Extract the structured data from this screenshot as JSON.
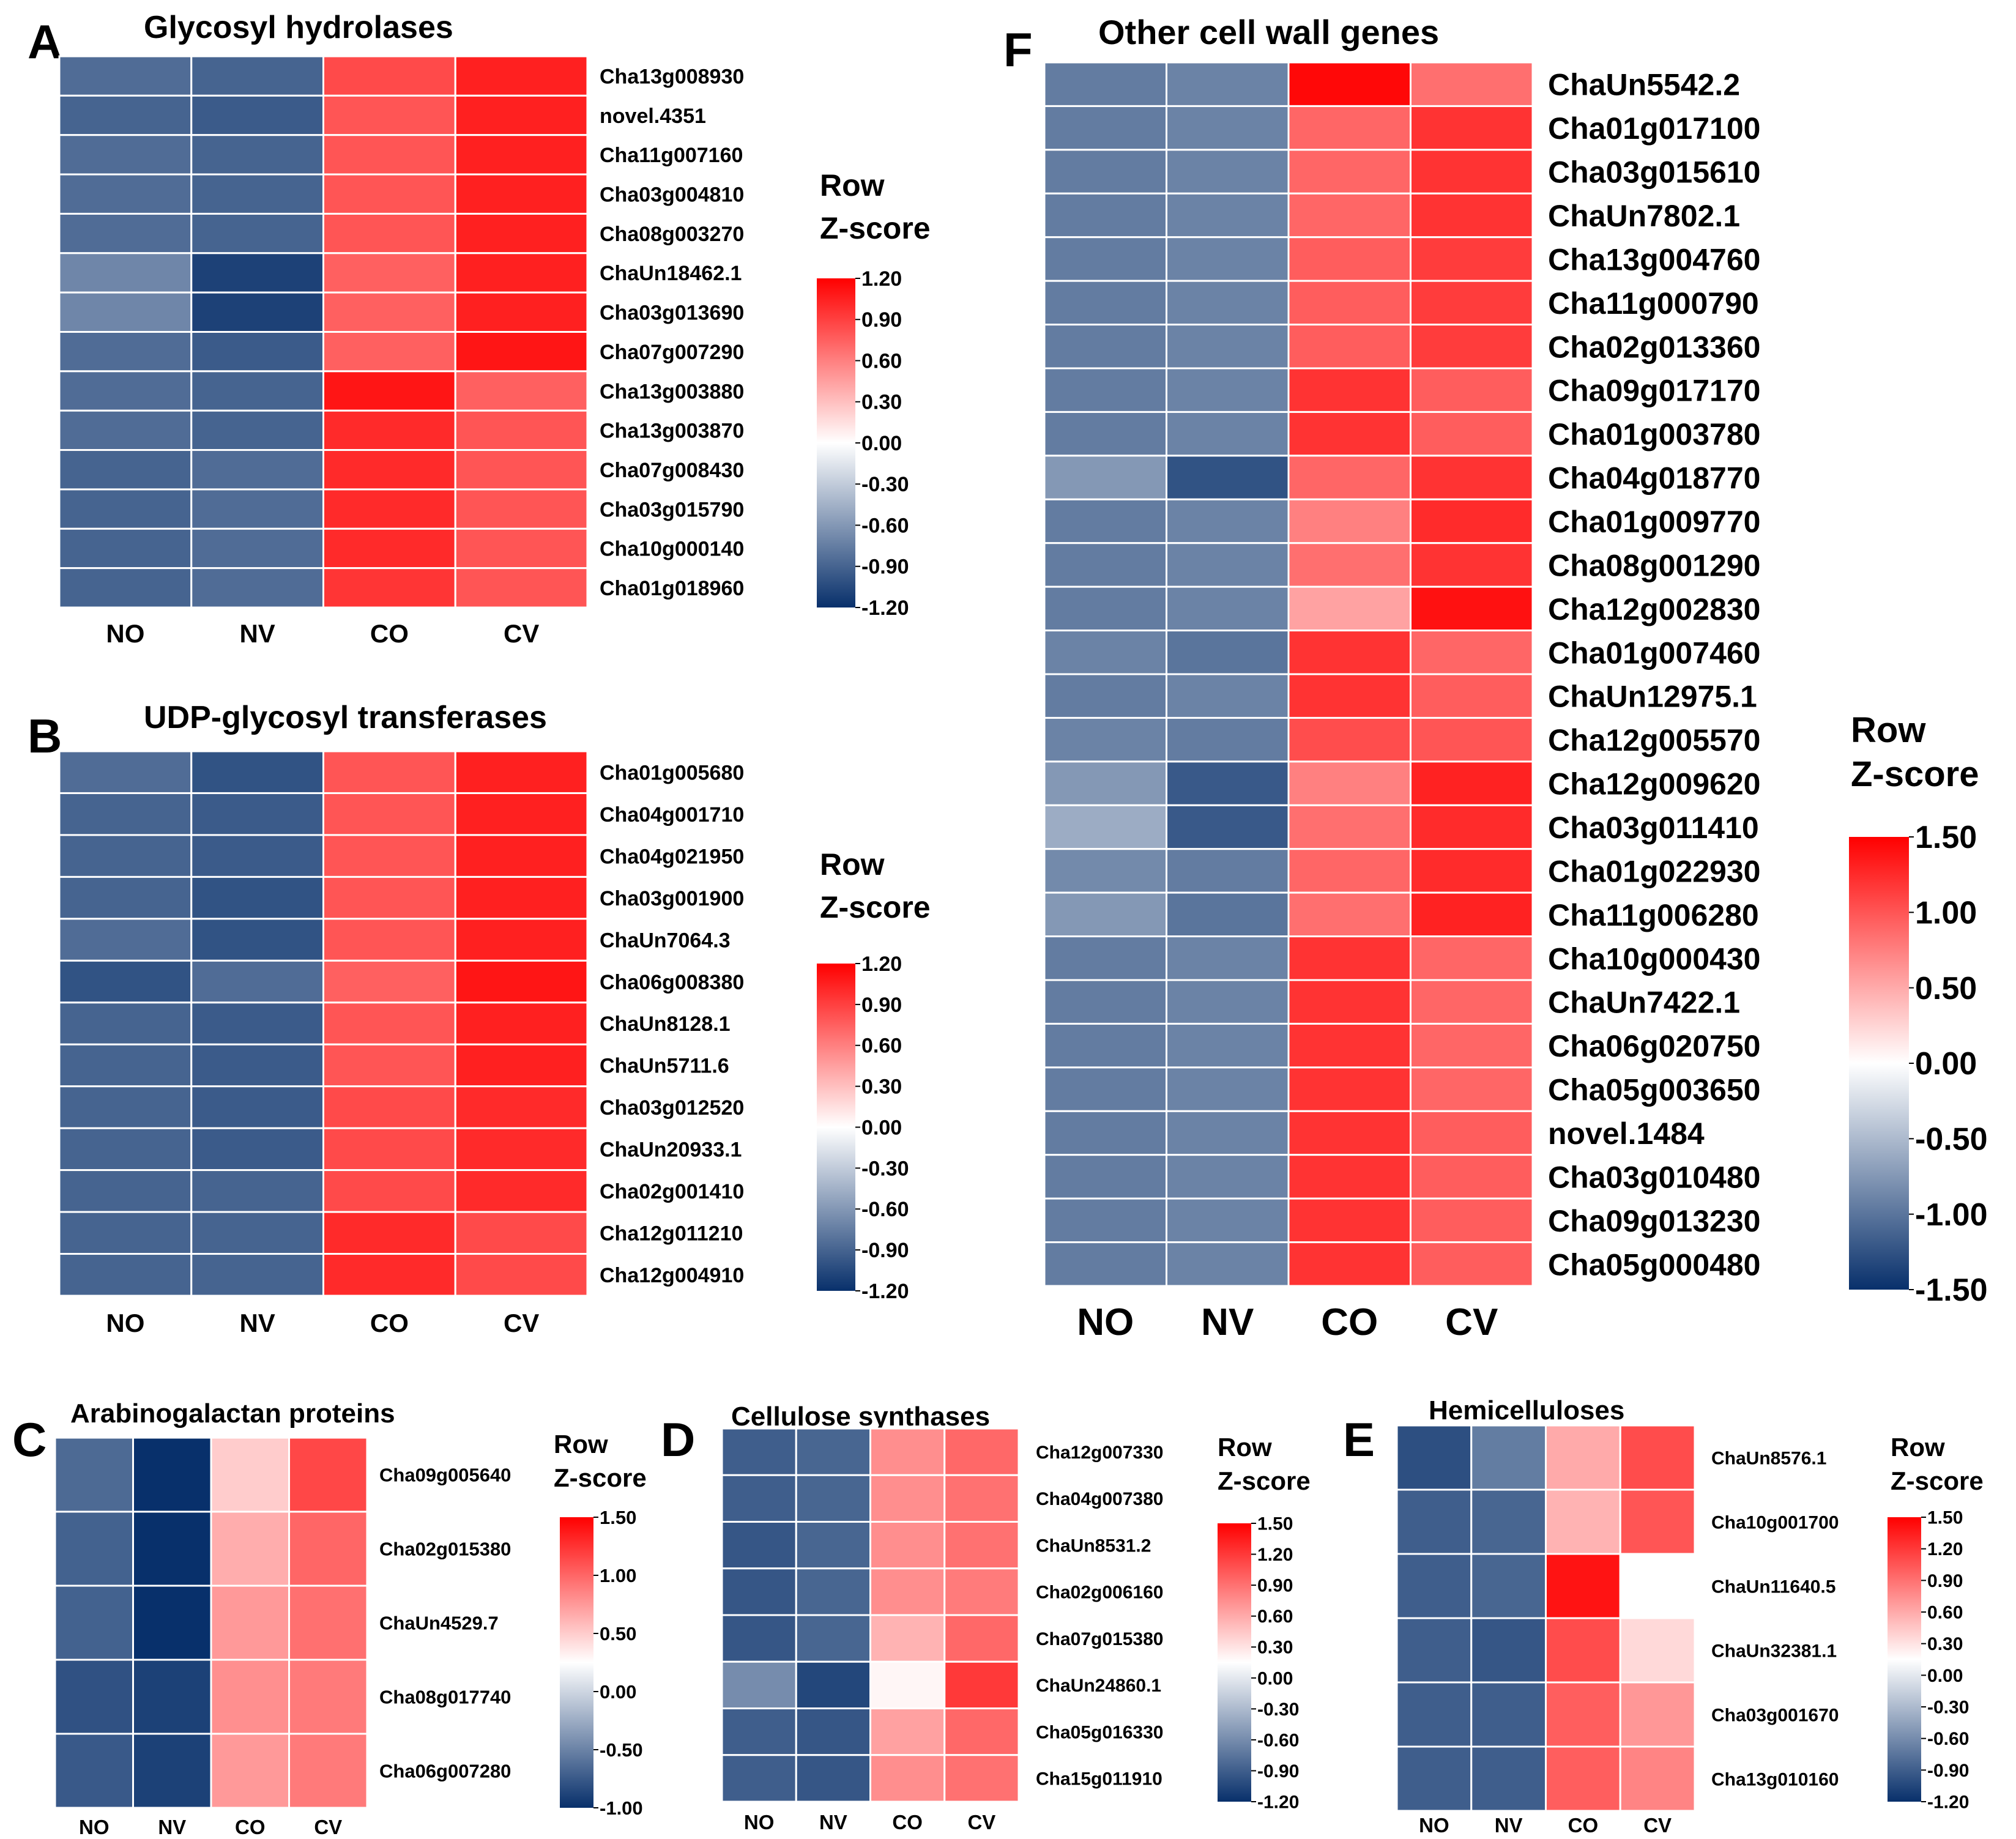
{
  "figure": {
    "description": "Multi-panel heatmap of row Z-scores for cell wall related genes in four samples",
    "legend_title_1": "Row",
    "legend_title_2": "Z-score"
  },
  "chart_data": [
    {
      "type": "heatmap",
      "panel": "A",
      "title": "Glycosyl hydrolases",
      "columns": [
        "NO",
        "NV",
        "CO",
        "CV"
      ],
      "rows": [
        "Cha13g008930",
        "novel.4351",
        "Cha11g007160",
        "Cha03g004810",
        "Cha08g003270",
        "ChaUn18462.1",
        "Cha03g013690",
        "Cha07g007290",
        "Cha13g003880",
        "Cha13g003870",
        "Cha07g008430",
        "Cha03g015790",
        "Cha10g000140",
        "Cha01g018960"
      ],
      "values": [
        [
          -0.85,
          -0.9,
          0.85,
          1.05
        ],
        [
          -0.9,
          -0.95,
          0.8,
          1.05
        ],
        [
          -0.85,
          -0.9,
          0.8,
          1.05
        ],
        [
          -0.85,
          -0.9,
          0.8,
          1.05
        ],
        [
          -0.85,
          -0.9,
          0.8,
          1.05
        ],
        [
          -0.7,
          -1.1,
          0.75,
          1.05
        ],
        [
          -0.7,
          -1.1,
          0.75,
          1.05
        ],
        [
          -0.85,
          -0.95,
          0.75,
          1.1
        ],
        [
          -0.85,
          -0.9,
          1.1,
          0.75
        ],
        [
          -0.85,
          -0.9,
          1.0,
          0.8
        ],
        [
          -0.9,
          -0.85,
          1.0,
          0.8
        ],
        [
          -0.9,
          -0.85,
          1.0,
          0.8
        ],
        [
          -0.9,
          -0.85,
          1.0,
          0.8
        ],
        [
          -0.9,
          -0.85,
          0.95,
          0.8
        ]
      ],
      "color_scale": {
        "min": -1.2,
        "max": 1.2,
        "ticks": [
          "1.20",
          "0.90",
          "0.60",
          "0.30",
          "0.00",
          "-0.30",
          "-0.60",
          "-0.90",
          "-1.20"
        ]
      }
    },
    {
      "type": "heatmap",
      "panel": "B",
      "title": "UDP-glycosyl transferases",
      "columns": [
        "NO",
        "NV",
        "CO",
        "CV"
      ],
      "rows": [
        "Cha01g005680",
        "Cha04g001710",
        "Cha04g021950",
        "Cha03g001900",
        "ChaUn7064.3",
        "Cha06g008380",
        "ChaUn8128.1",
        "ChaUn5711.6",
        "Cha03g012520",
        "ChaUn20933.1",
        "Cha02g001410",
        "Cha12g011210",
        "Cha12g004910"
      ],
      "values": [
        [
          -0.85,
          -1.0,
          0.8,
          1.05
        ],
        [
          -0.9,
          -0.95,
          0.8,
          1.05
        ],
        [
          -0.9,
          -0.95,
          0.8,
          1.05
        ],
        [
          -0.9,
          -1.0,
          0.8,
          1.05
        ],
        [
          -0.85,
          -1.0,
          0.8,
          1.05
        ],
        [
          -1.0,
          -0.85,
          0.75,
          1.1
        ],
        [
          -0.9,
          -0.95,
          0.8,
          1.05
        ],
        [
          -0.9,
          -0.95,
          0.8,
          1.05
        ],
        [
          -0.9,
          -0.95,
          0.85,
          1.0
        ],
        [
          -0.9,
          -0.95,
          0.85,
          1.0
        ],
        [
          -0.9,
          -0.9,
          0.85,
          1.0
        ],
        [
          -0.9,
          -0.9,
          1.0,
          0.85
        ],
        [
          -0.9,
          -0.9,
          1.0,
          0.85
        ]
      ],
      "color_scale": {
        "min": -1.2,
        "max": 1.2,
        "ticks": [
          "1.20",
          "0.90",
          "0.60",
          "0.30",
          "0.00",
          "-0.30",
          "-0.60",
          "-0.90",
          "-1.20"
        ]
      }
    },
    {
      "type": "heatmap",
      "panel": "C",
      "title": "Arabinogalactan  proteins",
      "columns": [
        "NO",
        "NV",
        "CO",
        "CV"
      ],
      "rows": [
        "Cha09g005640",
        "Cha02g015380",
        "ChaUn4529.7",
        "Cha08g017740",
        "Cha06g007280"
      ],
      "values": [
        [
          -0.65,
          -1.0,
          0.5,
          1.15
        ],
        [
          -0.7,
          -1.0,
          0.65,
          1.0
        ],
        [
          -0.7,
          -1.0,
          0.75,
          0.95
        ],
        [
          -0.8,
          -0.9,
          0.8,
          0.9
        ],
        [
          -0.75,
          -0.9,
          0.75,
          0.9
        ]
      ],
      "color_scale": {
        "min": -1.0,
        "max": 1.5,
        "ticks": [
          "1.50",
          "1.00",
          "0.50",
          "0.00",
          "-0.50",
          "-1.00"
        ]
      }
    },
    {
      "type": "heatmap",
      "panel": "D",
      "title": "Cellulose  synthases",
      "columns": [
        "NO",
        "NV",
        "CO",
        "CV"
      ],
      "rows": [
        "Cha12g007330",
        "Cha04g007380",
        "ChaUn8531.2",
        "Cha02g006160",
        "Cha07g015380",
        "ChaUn24860.1",
        "Cha05g016330",
        "Cha15g011910"
      ],
      "values": [
        [
          -0.9,
          -0.85,
          0.75,
          0.95
        ],
        [
          -0.9,
          -0.85,
          0.75,
          0.9
        ],
        [
          -0.95,
          -0.85,
          0.75,
          0.9
        ],
        [
          -0.95,
          -0.85,
          0.75,
          0.85
        ],
        [
          -0.95,
          -0.85,
          0.55,
          0.95
        ],
        [
          -0.6,
          -1.05,
          0.2,
          1.2
        ],
        [
          -0.9,
          -0.95,
          0.65,
          0.95
        ],
        [
          -0.9,
          -0.95,
          0.75,
          0.9
        ]
      ],
      "color_scale": {
        "min": -1.2,
        "max": 1.5,
        "ticks": [
          "1.50",
          "1.20",
          "0.90",
          "0.60",
          "0.30",
          "0.00",
          "-0.30",
          "-0.60",
          "-0.90",
          "-1.20"
        ]
      }
    },
    {
      "type": "heatmap",
      "panel": "E",
      "title": "Hemicelluloses",
      "columns": [
        "NO",
        "NV",
        "CO",
        "CV"
      ],
      "rows": [
        "ChaUn8576.1",
        "Cha10g001700",
        "ChaUn11640.5",
        "ChaUn32381.1",
        "Cha03g001670",
        "Cha13g010160"
      ],
      "values": [
        [
          -1.0,
          -0.7,
          0.6,
          1.1
        ],
        [
          -0.9,
          -0.85,
          0.55,
          1.05
        ],
        [
          -0.9,
          -0.85,
          1.4,
          0.15
        ],
        [
          -0.9,
          -0.95,
          1.1,
          0.35
        ],
        [
          -0.9,
          -0.9,
          1.0,
          0.7
        ],
        [
          -0.9,
          -0.9,
          1.0,
          0.8
        ]
      ],
      "color_scale": {
        "min": -1.2,
        "max": 1.5,
        "ticks": [
          "1.50",
          "1.20",
          "0.90",
          "0.60",
          "0.30",
          "0.00",
          "-0.30",
          "-0.60",
          "-0.90",
          "-1.20"
        ]
      }
    },
    {
      "type": "heatmap",
      "panel": "F",
      "title": "Other cell wall genes",
      "columns": [
        "NO",
        "NV",
        "CO",
        "CV"
      ],
      "rows": [
        "ChaUn5542.2",
        "Cha01g017100",
        "Cha03g015610",
        "ChaUn7802.1",
        "Cha13g004760",
        "Cha11g000790",
        "Cha02g013360",
        "Cha09g017170",
        "Cha01g003780",
        "Cha04g018770",
        "Cha01g009770",
        "Cha08g001290",
        "Cha12g002830",
        "Cha01g007460",
        "ChaUn12975.1",
        "Cha12g005570",
        "Cha12g009620",
        "Cha03g011410",
        "Cha01g022930",
        "Cha11g006280",
        "Cha10g000430",
        "ChaUn7422.1",
        "Cha06g020750",
        "Cha05g003650",
        "novel.1484",
        "Cha03g010480",
        "Cha09g013230",
        "Cha05g000480"
      ],
      "values": [
        [
          -0.95,
          -0.9,
          1.45,
          0.85
        ],
        [
          -0.95,
          -0.9,
          0.9,
          1.2
        ],
        [
          -0.95,
          -0.9,
          0.9,
          1.2
        ],
        [
          -0.95,
          -0.9,
          0.9,
          1.2
        ],
        [
          -0.95,
          -0.9,
          0.95,
          1.15
        ],
        [
          -0.95,
          -0.9,
          0.95,
          1.15
        ],
        [
          -0.95,
          -0.9,
          0.95,
          1.15
        ],
        [
          -0.95,
          -0.9,
          1.2,
          0.95
        ],
        [
          -0.95,
          -0.9,
          1.2,
          0.95
        ],
        [
          -0.75,
          -1.25,
          0.9,
          1.2
        ],
        [
          -0.95,
          -0.9,
          0.75,
          1.25
        ],
        [
          -0.95,
          -0.9,
          0.85,
          1.2
        ],
        [
          -0.95,
          -0.9,
          0.55,
          1.4
        ],
        [
          -0.9,
          -1.0,
          1.2,
          0.9
        ],
        [
          -0.95,
          -0.9,
          1.2,
          0.95
        ],
        [
          -0.9,
          -0.95,
          1.05,
          1.0
        ],
        [
          -0.75,
          -1.2,
          0.75,
          1.3
        ],
        [
          -0.6,
          -1.2,
          0.85,
          1.25
        ],
        [
          -0.85,
          -0.95,
          0.9,
          1.25
        ],
        [
          -0.75,
          -1.0,
          0.85,
          1.3
        ],
        [
          -0.95,
          -0.9,
          1.2,
          0.9
        ],
        [
          -0.95,
          -0.9,
          1.2,
          0.9
        ],
        [
          -0.95,
          -0.9,
          1.2,
          0.9
        ],
        [
          -0.95,
          -0.9,
          1.2,
          0.9
        ],
        [
          -0.95,
          -0.9,
          1.2,
          0.95
        ],
        [
          -0.95,
          -0.9,
          1.2,
          0.95
        ],
        [
          -0.95,
          -0.9,
          1.2,
          0.95
        ],
        [
          -0.95,
          -0.9,
          1.2,
          0.95
        ]
      ],
      "color_scale": {
        "min": -1.5,
        "max": 1.5,
        "ticks": [
          "1.50",
          "1.00",
          "0.50",
          "0.00",
          "-0.50",
          "-1.00",
          "-1.50"
        ]
      }
    }
  ]
}
